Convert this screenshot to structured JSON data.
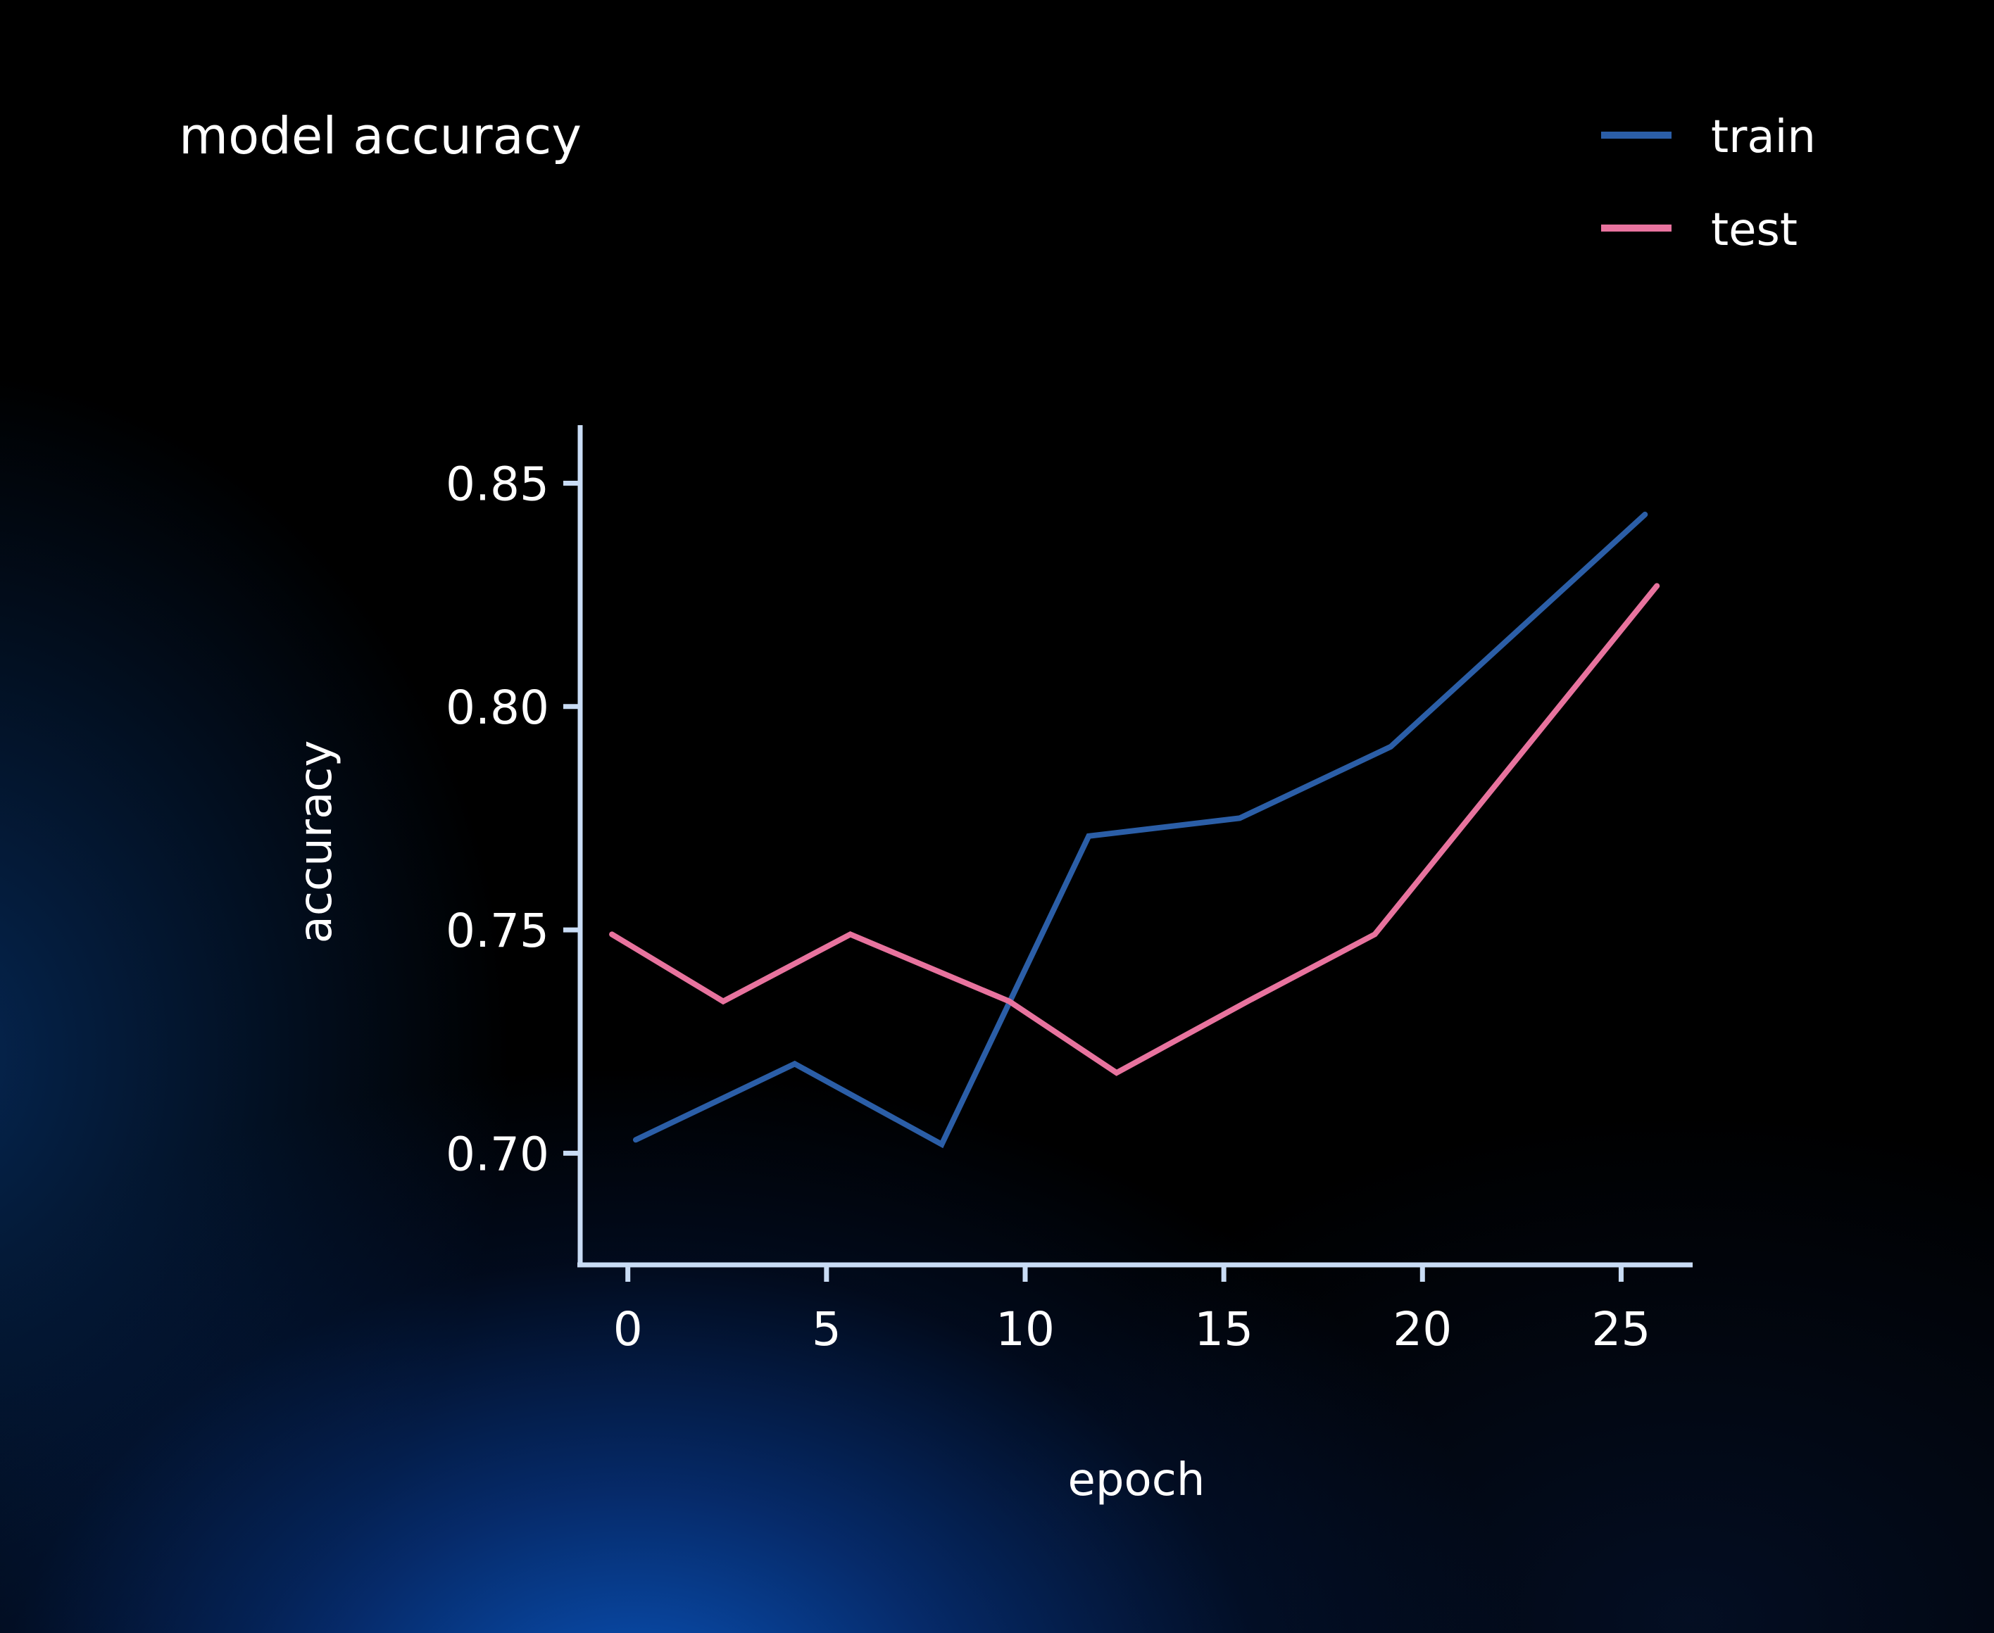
{
  "chart_data": {
    "type": "line",
    "title": "model accuracy",
    "xlabel": "epoch",
    "ylabel": "accuracy",
    "xlim": [
      -1.2,
      26.8
    ],
    "ylim": [
      0.675,
      0.863
    ],
    "xticks": [
      0,
      5,
      10,
      15,
      20,
      25
    ],
    "xtick_labels": [
      "0",
      "5",
      "10",
      "15",
      "20",
      "25"
    ],
    "yticks": [
      0.7,
      0.75,
      0.8,
      0.85
    ],
    "ytick_labels": [
      "0.70",
      "0.75",
      "0.80",
      "0.85"
    ],
    "grid": false,
    "legend_position": "top-right",
    "series": [
      {
        "name": "train",
        "color": "#2b5ea7",
        "x": [
          0.2,
          4.2,
          7.9,
          11.6,
          15.4,
          19.2,
          25.6
        ],
        "y": [
          0.703,
          0.72,
          0.702,
          0.771,
          0.775,
          0.791,
          0.843
        ]
      },
      {
        "name": "test",
        "color": "#e8739e",
        "x": [
          -0.4,
          2.4,
          5.6,
          9.6,
          12.3,
          15.6,
          18.8,
          25.9
        ],
        "y": [
          0.749,
          0.734,
          0.749,
          0.734,
          0.718,
          0.734,
          0.749,
          0.827
        ]
      }
    ]
  }
}
